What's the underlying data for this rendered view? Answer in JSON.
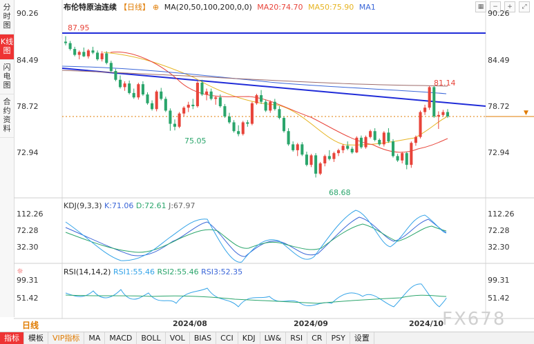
{
  "sidebar": {
    "tabs": [
      "分时图",
      "K线图",
      "闪电图",
      "合约资料"
    ]
  },
  "header": {
    "instrument": "布伦特原油连续",
    "period": "【日线】",
    "ma_label": "MA(20,50,100,200,0,0)",
    "ma20": "MA20:74.70",
    "ma50": "MA50:75.90",
    "ma1": "MA1"
  },
  "price_axis": {
    "ticks": [
      "90.26",
      "84.49",
      "78.72",
      "72.94"
    ]
  },
  "kdj": {
    "label": "KDJ(9,3,3)",
    "k": "K:71.06",
    "d": "D:72.61",
    "j": "J:67.97",
    "ticks": [
      "112.26",
      "72.28",
      "32.30"
    ]
  },
  "rsi": {
    "label": "RSI(14,14,2)",
    "rsi1": "RSI1:55.46",
    "rsi2": "RSI2:55.46",
    "rsi3": "RSI3:52.35",
    "ticks": [
      "99.31",
      "51.42"
    ]
  },
  "footer": {
    "period_label": "日线",
    "dates": [
      "2024/08",
      "2024/09",
      "2024/10"
    ],
    "watermark": "FX678"
  },
  "toolbar": {
    "items": [
      "指标",
      "模板",
      "VIP指标",
      "MA",
      "MACD",
      "BOLL",
      "VOL",
      "BIAS",
      "CCI",
      "KDJ",
      "LW&",
      "RSI",
      "CR",
      "PSY",
      "设置"
    ]
  },
  "colors": {
    "up": "#e8443a",
    "down": "#2aa56b",
    "trendline": "#1f2bd8",
    "ma20": "#e8443a",
    "ma50": "#e6b422",
    "ma100": "#3a66d8",
    "ma200": "#9c6a6a"
  },
  "chart_data": {
    "type": "candlestick",
    "price_range": [
      67.5,
      91.0
    ],
    "annotations": {
      "high_label": "87.95",
      "peak_label": "81.14",
      "low_label_1": "75.05",
      "low_label_2": "68.68"
    },
    "candles": [
      [
        87.2,
        87.95,
        86.7,
        87.0
      ],
      [
        87.0,
        87.3,
        86.0,
        86.2
      ],
      [
        86.2,
        86.5,
        85.2,
        85.4
      ],
      [
        85.4,
        86.0,
        84.8,
        85.8
      ],
      [
        85.8,
        86.4,
        85.1,
        85.2
      ],
      [
        85.2,
        86.2,
        84.9,
        86.0
      ],
      [
        86.0,
        86.5,
        85.5,
        85.7
      ],
      [
        85.7,
        86.0,
        84.6,
        84.8
      ],
      [
        84.8,
        85.9,
        84.5,
        85.6
      ],
      [
        85.6,
        85.9,
        84.1,
        84.3
      ],
      [
        84.3,
        84.6,
        83.0,
        83.2
      ],
      [
        83.2,
        83.5,
        81.8,
        82.0
      ],
      [
        82.0,
        82.6,
        80.8,
        81.0
      ],
      [
        81.0,
        81.8,
        80.5,
        81.5
      ],
      [
        81.5,
        81.9,
        80.0,
        80.2
      ],
      [
        80.2,
        80.8,
        79.4,
        79.6
      ],
      [
        79.6,
        81.6,
        79.3,
        81.4
      ],
      [
        81.4,
        81.8,
        79.8,
        80.0
      ],
      [
        80.0,
        80.3,
        78.6,
        78.8
      ],
      [
        78.8,
        79.2,
        77.8,
        78.0
      ],
      [
        78.0,
        80.6,
        77.7,
        80.4
      ],
      [
        80.4,
        80.9,
        79.2,
        79.4
      ],
      [
        79.4,
        79.7,
        77.6,
        77.8
      ],
      [
        77.8,
        78.1,
        75.05,
        76.0
      ],
      [
        76.0,
        76.6,
        75.1,
        75.6
      ],
      [
        75.6,
        77.6,
        75.4,
        77.4
      ],
      [
        77.4,
        78.4,
        77.0,
        78.2
      ],
      [
        78.2,
        79.0,
        77.6,
        78.6
      ],
      [
        78.6,
        79.4,
        78.0,
        78.4
      ],
      [
        78.4,
        81.8,
        78.2,
        81.6
      ],
      [
        81.6,
        82.0,
        79.8,
        80.0
      ],
      [
        80.0,
        80.8,
        79.2,
        80.4
      ],
      [
        80.4,
        80.8,
        79.2,
        79.4
      ],
      [
        79.4,
        79.8,
        78.6,
        79.6
      ],
      [
        79.6,
        80.0,
        78.2,
        78.4
      ],
      [
        78.4,
        78.7,
        76.8,
        77.0
      ],
      [
        77.0,
        77.5,
        76.0,
        76.2
      ],
      [
        76.2,
        76.5,
        74.8,
        75.0
      ],
      [
        75.0,
        75.8,
        74.3,
        74.6
      ],
      [
        74.6,
        76.4,
        74.4,
        76.2
      ],
      [
        76.2,
        76.5,
        75.6,
        76.0
      ],
      [
        76.0,
        79.0,
        75.8,
        78.8
      ],
      [
        78.8,
        80.1,
        78.6,
        79.9
      ],
      [
        79.9,
        80.6,
        78.7,
        79.0
      ],
      [
        79.0,
        79.3,
        77.6,
        77.8
      ],
      [
        77.8,
        79.2,
        77.5,
        79.0
      ],
      [
        79.0,
        79.4,
        77.8,
        78.0
      ],
      [
        78.0,
        78.4,
        76.6,
        76.8
      ],
      [
        76.8,
        77.0,
        74.8,
        75.0
      ],
      [
        75.0,
        75.4,
        73.0,
        73.2
      ],
      [
        73.2,
        73.6,
        72.2,
        72.4
      ],
      [
        72.4,
        73.4,
        71.6,
        73.2
      ],
      [
        73.2,
        73.5,
        71.6,
        71.8
      ],
      [
        71.8,
        72.2,
        70.2,
        70.4
      ],
      [
        70.4,
        71.9,
        70.1,
        71.7
      ],
      [
        71.7,
        72.0,
        68.68,
        69.2
      ],
      [
        69.2,
        70.8,
        69.0,
        70.6
      ],
      [
        70.6,
        71.8,
        70.2,
        71.6
      ],
      [
        71.6,
        72.4,
        71.0,
        71.2
      ],
      [
        71.2,
        72.2,
        70.8,
        72.0
      ],
      [
        72.0,
        72.6,
        71.6,
        72.4
      ],
      [
        72.4,
        73.2,
        72.0,
        73.0
      ],
      [
        73.0,
        73.6,
        72.4,
        72.6
      ],
      [
        72.6,
        72.9,
        71.9,
        72.1
      ],
      [
        72.1,
        74.3,
        72.0,
        74.1
      ],
      [
        74.1,
        74.4,
        72.6,
        72.8
      ],
      [
        72.8,
        74.4,
        72.6,
        74.2
      ],
      [
        74.2,
        75.2,
        74.0,
        75.0
      ],
      [
        75.0,
        75.4,
        73.6,
        73.8
      ],
      [
        73.8,
        74.0,
        73.0,
        73.2
      ],
      [
        73.2,
        75.0,
        72.9,
        74.8
      ],
      [
        74.8,
        75.4,
        73.4,
        73.6
      ],
      [
        73.6,
        73.9,
        71.4,
        71.6
      ],
      [
        71.6,
        71.9,
        70.8,
        71.0
      ],
      [
        71.0,
        72.2,
        70.6,
        72.0
      ],
      [
        72.0,
        72.2,
        69.8,
        70.4
      ],
      [
        70.4,
        73.6,
        70.0,
        73.4
      ],
      [
        73.4,
        74.4,
        73.0,
        74.2
      ],
      [
        74.2,
        77.8,
        74.0,
        77.6
      ],
      [
        77.6,
        78.6,
        77.2,
        78.2
      ],
      [
        78.2,
        81.14,
        77.9,
        81.0
      ],
      [
        81.0,
        81.14,
        76.8,
        77.0
      ],
      [
        77.0,
        77.7,
        75.3,
        77.2
      ],
      [
        77.2,
        77.9,
        77.0,
        77.6
      ],
      [
        77.6,
        78.0,
        76.8,
        77.0
      ]
    ]
  }
}
